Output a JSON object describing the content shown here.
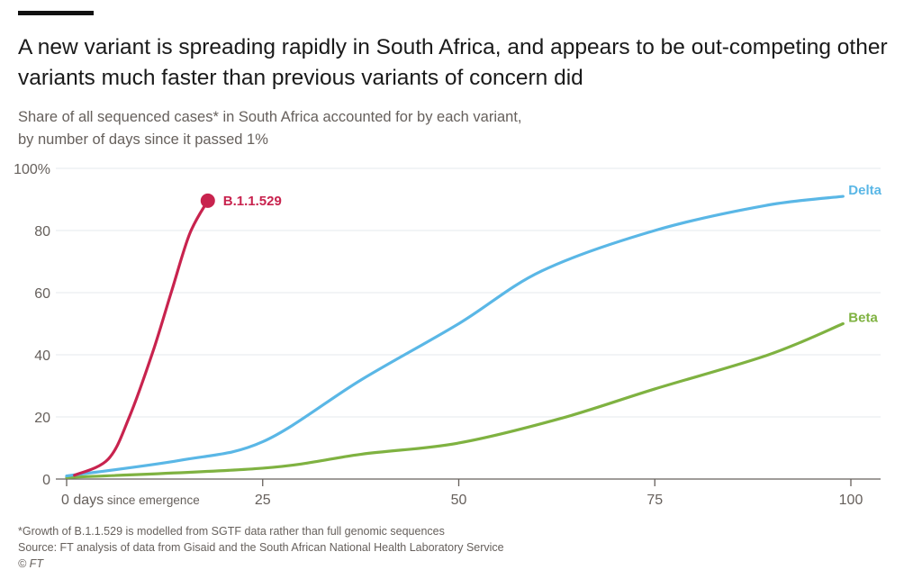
{
  "chart_data": {
    "type": "line",
    "title": "A new variant is spreading rapidly in South Africa, and appears to be out-competing other variants much faster than previous variants of concern did",
    "subtitle_lines": [
      "Share of all sequenced cases* in South Africa accounted for by each variant,",
      "by number of days since it passed 1%"
    ],
    "xlabel": "days since emergence",
    "ylabel": "",
    "xlim": [
      0,
      100
    ],
    "ylim": [
      0,
      100
    ],
    "x_ticks": [
      0,
      25,
      50,
      75,
      100
    ],
    "x_tick_labels": [
      "0 days",
      "25",
      "50",
      "75",
      "100"
    ],
    "x_first_tick_suffix": "since emergence",
    "y_ticks": [
      0,
      20,
      40,
      60,
      80,
      100
    ],
    "y_tick_labels": [
      "0",
      "20",
      "40",
      "60",
      "80",
      "100%"
    ],
    "grid": true,
    "series": [
      {
        "name": "B.1.1.529",
        "color": "#c8234e",
        "end_marker": true,
        "x": [
          1,
          5.3,
          8,
          11,
          13.4,
          15.7,
          18
        ],
        "y": [
          1.2,
          6.4,
          20,
          41,
          60.6,
          79,
          89.6
        ]
      },
      {
        "name": "Delta",
        "color": "#5ab7e6",
        "end_marker": false,
        "x": [
          0,
          14.4,
          25,
          37.6,
          50,
          60.6,
          75,
          89,
          99
        ],
        "y": [
          1,
          6,
          12,
          32,
          50,
          67,
          80,
          88,
          91
        ]
      },
      {
        "name": "Beta",
        "color": "#7fb241",
        "end_marker": false,
        "x": [
          0,
          25,
          37.6,
          50,
          63,
          75,
          89.5,
          99
        ],
        "y": [
          0.5,
          3.5,
          8,
          11.6,
          19.5,
          29,
          40,
          50
        ]
      }
    ]
  },
  "notes": {
    "footnote": "*Growth of B.1.1.529 is modelled from SGTF data rather than full genomic sequences",
    "source": "Source: FT analysis of data from Gisaid and the South African National Health Laboratory Service",
    "copyright": "© FT"
  }
}
